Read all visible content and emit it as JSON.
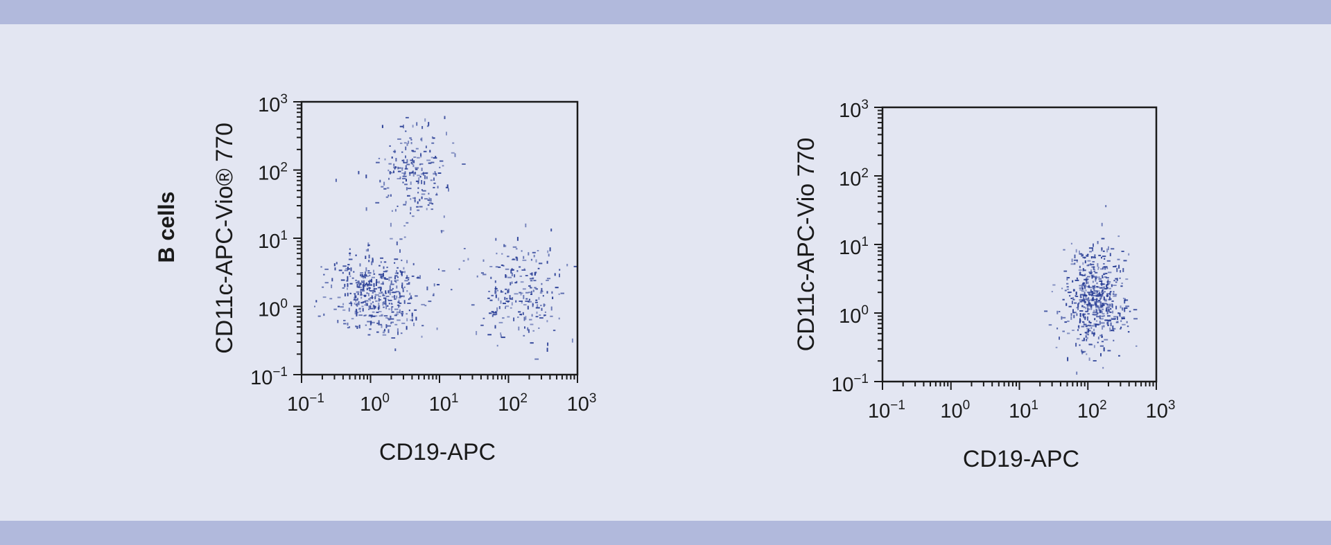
{
  "row_label": "B cells",
  "colors": {
    "background": "#e3e6f2",
    "band": "#b1b9dc",
    "events": "#2a3f96",
    "axis": "#1a1a1a"
  },
  "chart_data": [
    {
      "type": "scatter",
      "subtype": "flow-cytometry-dot-plot",
      "xlabel": "CD19-APC",
      "ylabel": "CD11c-APC-Vio® 770",
      "xscale": "log",
      "yscale": "log",
      "xlim": [
        0.1,
        1000
      ],
      "ylim": [
        0.1,
        1000
      ],
      "xticks": [
        "10^-1",
        "10^0",
        "10^1",
        "10^2",
        "10^3"
      ],
      "yticks": [
        "10^-1",
        "10^0",
        "10^1",
        "10^2",
        "10^3"
      ],
      "grid": false,
      "populations": [
        {
          "center": [
            1.2,
            1.5
          ],
          "spread_decades": [
            0.35,
            0.3
          ],
          "events": 420
        },
        {
          "center": [
            4,
            90
          ],
          "spread_decades": [
            0.25,
            0.35
          ],
          "events": 200
        },
        {
          "center": [
            140,
            1.8
          ],
          "spread_decades": [
            0.3,
            0.35
          ],
          "events": 220
        }
      ]
    },
    {
      "type": "scatter",
      "subtype": "flow-cytometry-dot-plot",
      "xlabel": "CD19-APC",
      "ylabel": "CD11c-APC-Vio 770",
      "xscale": "log",
      "yscale": "log",
      "xlim": [
        0.1,
        1000
      ],
      "ylim": [
        0.1,
        1000
      ],
      "xticks": [
        "10^-1",
        "10^0",
        "10^1",
        "10^2",
        "10^3"
      ],
      "yticks": [
        "10^-1",
        "10^0",
        "10^1",
        "10^2",
        "10^3"
      ],
      "grid": false,
      "populations": [
        {
          "center": [
            120,
            1.6
          ],
          "spread_decades": [
            0.22,
            0.38
          ],
          "events": 520
        }
      ]
    }
  ]
}
